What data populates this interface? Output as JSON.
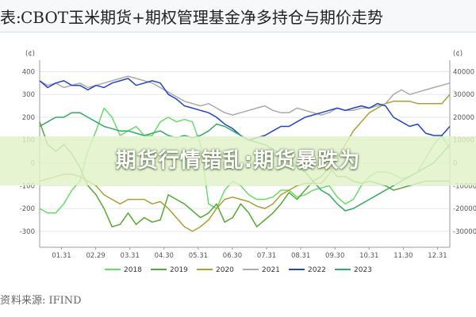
{
  "header": {
    "title_prefix": "表:",
    "title": "CBOT玉米期货+期权管理基金净多持仓与期价走势"
  },
  "overlay": {
    "headline": "期货行情错乱:期货暴跌为"
  },
  "footer": {
    "source_prefix": "资",
    "source": "料来源: IFIND"
  },
  "chart_data": {
    "type": "line",
    "x_ticks": [
      "01.31",
      "02.29",
      "03.31",
      "04.30",
      "05.31",
      "06.30",
      "07.31",
      "08.31",
      "09.30",
      "10.31",
      "11.30",
      "12.31"
    ],
    "left_axis": {
      "unit": "(¢)",
      "ticks": [
        400,
        300,
        200,
        100,
        0,
        -100,
        -200,
        -300
      ]
    },
    "right_axis": {
      "unit": "(¢)",
      "ticks": [
        40000,
        30000,
        20000,
        10000,
        0,
        -10000,
        -20000,
        -30000
      ],
      "ylim": [
        -37000,
        45000
      ]
    },
    "x": [
      1,
      2,
      3,
      4,
      5,
      6,
      7,
      8,
      9,
      10,
      11,
      12,
      13,
      14,
      15,
      16,
      17,
      18,
      19,
      20,
      21,
      22,
      23,
      24,
      25,
      26,
      27,
      28,
      29,
      30,
      31,
      32,
      33,
      34,
      35,
      36,
      37,
      38,
      39,
      40,
      41,
      42,
      43,
      44,
      45,
      46,
      47,
      48,
      49,
      50,
      51,
      52
    ],
    "series": [
      {
        "name": "2018",
        "color": "#66dd66",
        "values": [
          -20000,
          -22000,
          -22000,
          -18000,
          -12000,
          -8000,
          5000,
          14000,
          24000,
          20000,
          12000,
          14000,
          16000,
          12000,
          12000,
          18000,
          20000,
          18000,
          19000,
          18000,
          8000,
          -18000,
          -20000,
          -12000,
          -8000,
          -10000,
          -14000,
          -16000,
          -16000,
          -15000,
          -12000,
          -12000,
          -15000,
          -14000,
          -12000,
          -11000,
          -10000,
          -15000,
          -18000,
          -16000,
          -10000,
          -6000,
          -4000,
          -4000,
          -5000,
          -7000,
          -6000,
          -4000,
          2000,
          8000,
          12000,
          6000
        ]
      },
      {
        "name": "2019",
        "color": "#55aa33",
        "values": [
          18000,
          8000,
          5000,
          8000,
          4000,
          -2000,
          -10000,
          -14000,
          -20000,
          -28000,
          -27000,
          -22000,
          -27000,
          -24000,
          -26000,
          -25000,
          -14000,
          -16000,
          -18000,
          -21000,
          -24000,
          -22000,
          -18000,
          -26000,
          -24000,
          -18000,
          -22000,
          -28000,
          -25000,
          -22000,
          -18000,
          -13000,
          -16000,
          -12000,
          -8000,
          -6000,
          -2000,
          -6000,
          -6000,
          -8000,
          -9000,
          -8000,
          -9000,
          -10000,
          -12000,
          -11000,
          -10000,
          -9000,
          -8000,
          -8000,
          -8000,
          -8000
        ]
      },
      {
        "name": "2020",
        "color": "#aaa033",
        "values": [
          -8000,
          -7000,
          -6000,
          -5000,
          -5000,
          -6000,
          -8000,
          -10000,
          -14000,
          -16000,
          -18000,
          -16000,
          -16000,
          -16000,
          -18000,
          -17000,
          -20000,
          -24000,
          -28000,
          -30000,
          -28000,
          -25000,
          -20000,
          -16000,
          -15000,
          -16000,
          -17000,
          -19000,
          -20000,
          -18000,
          -14000,
          -12000,
          -10000,
          -9000,
          -9000,
          -9000,
          -5000,
          2000,
          8000,
          14000,
          18000,
          22000,
          24000,
          26000,
          27000,
          27000,
          27000,
          26000,
          26000,
          26000,
          26000,
          30000
        ]
      },
      {
        "name": "2021",
        "color": "#aaaaaa",
        "values": [
          36000,
          34000,
          35000,
          33000,
          34000,
          35000,
          33000,
          34000,
          35000,
          36000,
          37000,
          38000,
          37000,
          36000,
          35000,
          33000,
          31000,
          29000,
          27000,
          26000,
          25000,
          26000,
          24000,
          22000,
          21000,
          22000,
          23000,
          24000,
          25000,
          23000,
          22000,
          22000,
          24000,
          23000,
          22000,
          21000,
          22000,
          24000,
          23000,
          23000,
          24000,
          24000,
          25000,
          26000,
          30000,
          32000,
          30000,
          31000,
          32000,
          33000,
          34000,
          35000
        ]
      },
      {
        "name": "2022",
        "color": "#2244cc",
        "values": [
          36000,
          33000,
          35000,
          36000,
          34000,
          34000,
          32000,
          34000,
          33000,
          35000,
          36000,
          37000,
          34000,
          35000,
          36000,
          35000,
          30000,
          28000,
          25000,
          24000,
          23000,
          22000,
          20000,
          17000,
          15000,
          12000,
          10000,
          11000,
          12000,
          14000,
          16000,
          16000,
          18000,
          20000,
          21000,
          22000,
          23000,
          24000,
          23000,
          24000,
          25000,
          24000,
          26000,
          25000,
          20000,
          18000,
          16000,
          17000,
          13000,
          12000,
          12000,
          16000
        ]
      },
      {
        "name": "2023",
        "color": "#33aa66",
        "values": [
          16000,
          18000,
          20000,
          20000,
          22000,
          22000,
          20000,
          18000,
          16000,
          15000,
          14000,
          14000,
          13000,
          12000,
          13000,
          14000,
          12000,
          11000,
          12000,
          11000,
          12000,
          14000,
          17000,
          16000,
          14000,
          12000,
          10000,
          9000,
          8000,
          6000,
          4000,
          2000,
          -2000,
          -4000,
          -8000,
          -12000,
          -14000,
          -18000,
          -21000,
          -20000,
          -18000,
          -16000,
          -14000,
          -12000,
          -10000,
          -8000,
          -6000,
          -4000,
          -2000,
          0,
          4000,
          8000
        ]
      }
    ]
  }
}
